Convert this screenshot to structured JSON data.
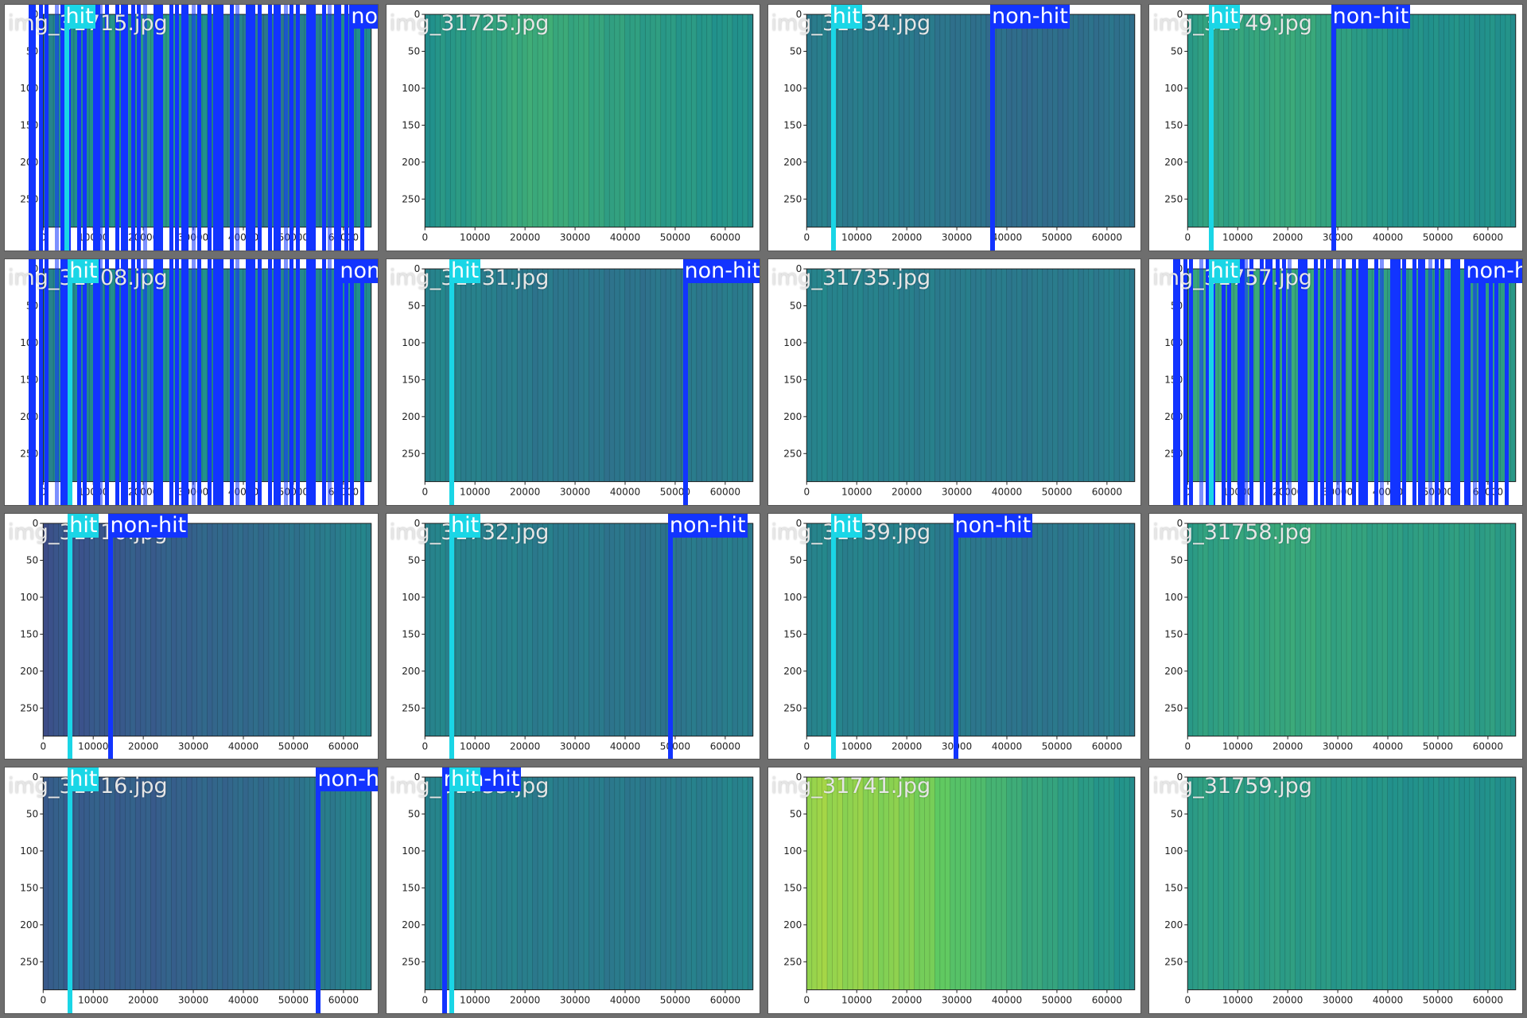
{
  "labels": {
    "hit": "hit",
    "non_hit": "non-hit"
  },
  "colors": {
    "hit": "#1ad6e6",
    "non_hit": "#1234ff",
    "frame": "#6e6e6e"
  },
  "axes": {
    "x_ticks": [
      "0",
      "10000",
      "20000",
      "30000",
      "40000",
      "50000",
      "60000"
    ],
    "y_ticks": [
      "0",
      "50",
      "100",
      "150",
      "200",
      "250"
    ]
  },
  "tiles": [
    {
      "file": "img_31715.jpg",
      "base": "#3a6a8a",
      "heat": [
        0.45,
        0.55,
        0.4,
        0.5
      ],
      "dense": true,
      "detections": [
        {
          "type": "hit",
          "x": 0.16
        },
        {
          "type": "non_hit",
          "x": 0.93
        }
      ]
    },
    {
      "file": "img_31725.jpg",
      "base": "#2b8a8a",
      "heat": [
        0.5,
        0.62,
        0.55,
        0.5
      ],
      "dense": false,
      "detections": []
    },
    {
      "file": "img_31734.jpg",
      "base": "#3b4f8a",
      "heat": [
        0.42,
        0.4,
        0.35,
        0.38
      ],
      "dense": false,
      "detections": [
        {
          "type": "hit",
          "x": 0.17
        },
        {
          "type": "non_hit",
          "x": 0.6
        }
      ]
    },
    {
      "file": "img_31749.jpg",
      "base": "#2b8a8a",
      "heat": [
        0.55,
        0.6,
        0.5,
        0.5
      ],
      "dense": false,
      "detections": [
        {
          "type": "hit",
          "x": 0.16
        },
        {
          "type": "non_hit",
          "x": 0.49
        }
      ]
    },
    {
      "file": "img_31708.jpg",
      "base": "#3a6a8a",
      "heat": [
        0.45,
        0.5,
        0.45,
        0.5
      ],
      "dense": true,
      "detections": [
        {
          "type": "hit",
          "x": 0.17
        },
        {
          "type": "non_hit",
          "x": 0.9
        }
      ]
    },
    {
      "file": "img_31731.jpg",
      "base": "#3b5c8c",
      "heat": [
        0.45,
        0.4,
        0.38,
        0.42
      ],
      "dense": false,
      "detections": [
        {
          "type": "hit",
          "x": 0.17
        },
        {
          "type": "non_hit",
          "x": 0.8
        }
      ]
    },
    {
      "file": "img_31735.jpg",
      "base": "#3b5c8c",
      "heat": [
        0.45,
        0.42,
        0.4,
        0.42
      ],
      "dense": false,
      "detections": []
    },
    {
      "file": "img_31757.jpg",
      "base": "#2b8a8a",
      "heat": [
        0.6,
        0.6,
        0.55,
        0.55
      ],
      "dense": true,
      "detections": [
        {
          "type": "hit",
          "x": 0.16
        },
        {
          "type": "non_hit",
          "x": 0.85
        }
      ]
    },
    {
      "file": "img_31710.jpg",
      "base": "#3f2f7c",
      "heat": [
        0.25,
        0.3,
        0.35,
        0.45
      ],
      "dense": false,
      "detections": [
        {
          "type": "hit",
          "x": 0.17
        },
        {
          "type": "non_hit",
          "x": 0.28
        }
      ]
    },
    {
      "file": "img_31732.jpg",
      "base": "#3b5c8c",
      "heat": [
        0.45,
        0.42,
        0.38,
        0.42
      ],
      "dense": false,
      "detections": [
        {
          "type": "hit",
          "x": 0.17
        },
        {
          "type": "non_hit",
          "x": 0.76
        }
      ]
    },
    {
      "file": "img_31739.jpg",
      "base": "#3b5c8c",
      "heat": [
        0.45,
        0.42,
        0.38,
        0.42
      ],
      "dense": false,
      "detections": [
        {
          "type": "hit",
          "x": 0.17
        },
        {
          "type": "non_hit",
          "x": 0.5
        }
      ]
    },
    {
      "file": "img_31758.jpg",
      "base": "#2b8a8a",
      "heat": [
        0.55,
        0.6,
        0.55,
        0.55
      ],
      "dense": false,
      "detections": []
    },
    {
      "file": "img_31716.jpg",
      "base": "#3f2f7c",
      "heat": [
        0.3,
        0.3,
        0.35,
        0.45
      ],
      "dense": false,
      "detections": [
        {
          "type": "hit",
          "x": 0.17
        },
        {
          "type": "non_hit",
          "x": 0.84
        }
      ]
    },
    {
      "file": "img_31733.jpg",
      "base": "#3b5c8c",
      "heat": [
        0.45,
        0.42,
        0.4,
        0.45
      ],
      "dense": false,
      "detections": [
        {
          "type": "non_hit",
          "x": 0.15
        },
        {
          "type": "hit",
          "x": 0.17
        }
      ]
    },
    {
      "file": "img_31741.jpg",
      "base": "#2ea68a",
      "heat": [
        0.85,
        0.8,
        0.6,
        0.5
      ],
      "dense": false,
      "detections": []
    },
    {
      "file": "img_31759.jpg",
      "base": "#2b8a8a",
      "heat": [
        0.55,
        0.55,
        0.5,
        0.5
      ],
      "dense": false,
      "detections": []
    }
  ]
}
